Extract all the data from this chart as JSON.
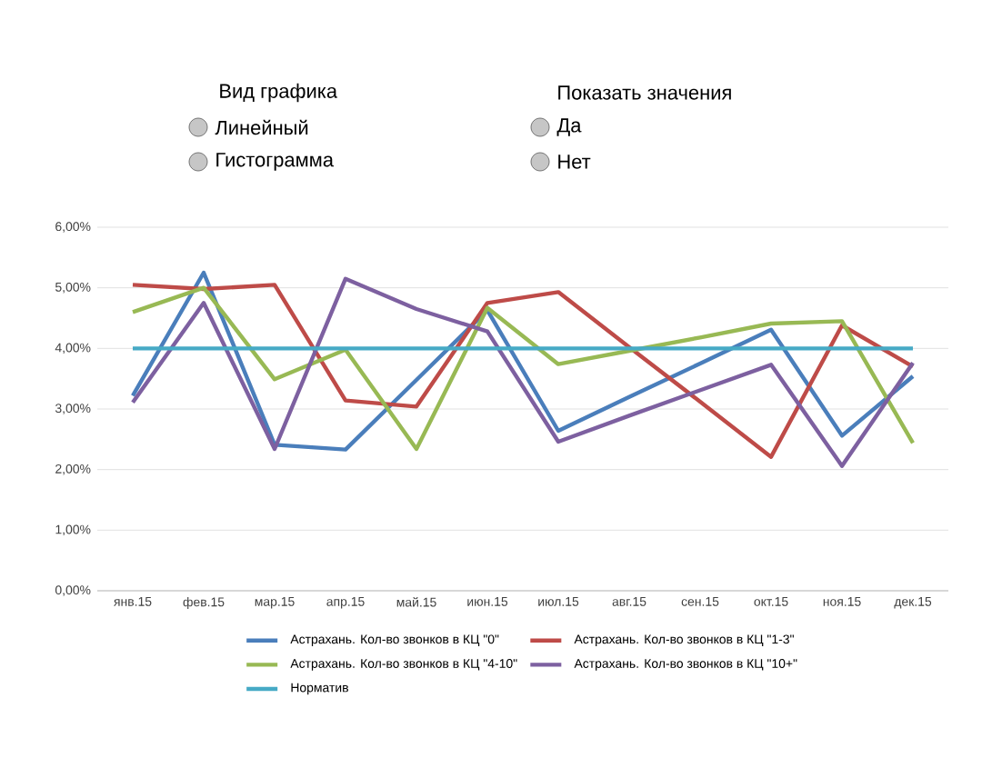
{
  "chart_data": {
    "type": "line",
    "categories": [
      "янв.15",
      "фев.15",
      "мар.15",
      "апр.15",
      "май.15",
      "июн.15",
      "июл.15",
      "авг.15",
      "сен.15",
      "окт.15",
      "ноя.15",
      "дек.15"
    ],
    "series": [
      {
        "name": "Астрахань. Кол-во звонков в КЦ \"0\"",
        "color": "#4a7ebb",
        "values": [
          3.22,
          5.25,
          2.41,
          2.33,
          3.48,
          4.63,
          2.64,
          3.2,
          3.75,
          4.31,
          2.56,
          3.54
        ]
      },
      {
        "name": "Астрахань. Кол-во звонков в КЦ \"1-3\"",
        "color": "#be4b48",
        "values": [
          5.05,
          4.98,
          5.05,
          3.14,
          3.04,
          4.75,
          4.93,
          4.02,
          3.12,
          2.21,
          4.38,
          3.7
        ]
      },
      {
        "name": "Астрахань. Кол-во звонков в КЦ \"4-10\"",
        "color": "#98b954",
        "values": [
          4.6,
          5.0,
          3.49,
          3.98,
          2.34,
          4.67,
          3.74,
          3.96,
          4.18,
          4.41,
          4.45,
          2.44
        ]
      },
      {
        "name": "Астрахань. Кол-во звонков в КЦ \"10+\"",
        "color": "#7d60a0",
        "values": [
          3.11,
          4.75,
          2.34,
          5.15,
          4.65,
          4.28,
          2.46,
          2.89,
          3.31,
          3.73,
          2.06,
          3.76
        ]
      },
      {
        "name": "Норматив",
        "color": "#46aac5",
        "values": [
          4,
          4,
          4,
          4,
          4,
          4,
          4,
          4,
          4,
          4,
          4,
          4
        ]
      }
    ],
    "ylim": [
      0,
      6
    ],
    "yticks": [
      {
        "value": 0,
        "label": "0,00%"
      },
      {
        "value": 1,
        "label": "1,00%"
      },
      {
        "value": 2,
        "label": "2,00%"
      },
      {
        "value": 3,
        "label": "3,00%"
      },
      {
        "value": 4,
        "label": "4,00%"
      },
      {
        "value": 5,
        "label": "5,00%"
      },
      {
        "value": 6,
        "label": "6,00%"
      }
    ],
    "grid": "y",
    "legend": "bottom",
    "marker": "none",
    "line_style": "solid",
    "annotations": [
      "Вид графика",
      "Линейный",
      "Гистограмма",
      "Показать значения",
      "Да",
      "Нет"
    ]
  }
}
